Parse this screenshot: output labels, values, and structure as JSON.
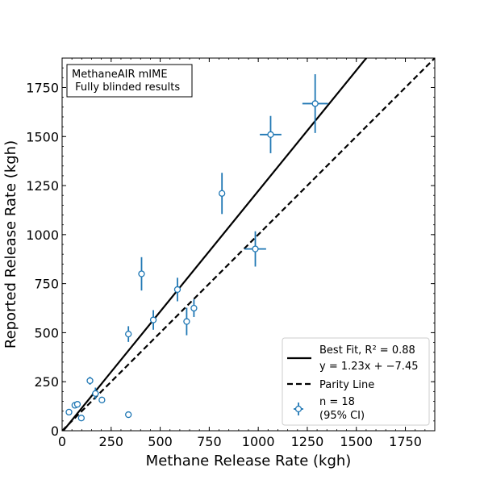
{
  "chart_data": {
    "type": "scatter",
    "xlabel": "Methane Release Rate (kgh)",
    "ylabel": "Reported Release Rate (kgh)",
    "xlim": [
      0,
      1900
    ],
    "ylim": [
      0,
      1900
    ],
    "x_ticks": [
      0,
      250,
      500,
      750,
      1000,
      1250,
      1500,
      1750
    ],
    "y_ticks": [
      0,
      250,
      500,
      750,
      1000,
      1250,
      1500,
      1750
    ],
    "x_tick_labels": [
      "0",
      "250",
      "500",
      "750",
      "1000",
      "1250",
      "1500",
      "1750"
    ],
    "y_tick_labels": [
      "0",
      "250",
      "500",
      "750",
      "1000",
      "1250",
      "1500",
      "1750"
    ],
    "annotation": {
      "lines": [
        "MethaneAIR mIME",
        " Fully blinded results"
      ],
      "placement": "top-left"
    },
    "legend": {
      "placement": "bottom-right",
      "entries": [
        {
          "text_lines": [
            "Best Fit, R² = 0.88",
            "y = 1.23x + −7.45"
          ],
          "style": "solid-line"
        },
        {
          "text_lines": [
            "Parity Line"
          ],
          "style": "dashed-line"
        },
        {
          "text_lines": [
            "n = 18",
            "(95% CI)"
          ],
          "style": "marker-errorbar"
        }
      ]
    },
    "fit_line": {
      "slope": 1.23,
      "intercept": -7.45,
      "r2": 0.88
    },
    "parity_line": {
      "slope": 1,
      "intercept": 0
    },
    "series": [
      {
        "points": [
          {
            "x": 35,
            "y": 95,
            "xerr": 0,
            "yerr": 0
          },
          {
            "x": 65,
            "y": 130,
            "xerr": 0,
            "yerr": 0
          },
          {
            "x": 78,
            "y": 135,
            "xerr": 0,
            "yerr": 0
          },
          {
            "x": 98,
            "y": 65,
            "xerr": 0,
            "yerr": 0
          },
          {
            "x": 142,
            "y": 255,
            "xerr": 0,
            "yerr": 20
          },
          {
            "x": 170,
            "y": 190,
            "xerr": 18,
            "yerr": 30
          },
          {
            "x": 203,
            "y": 157,
            "xerr": 0,
            "yerr": 0
          },
          {
            "x": 338,
            "y": 82,
            "xerr": 0,
            "yerr": 0
          },
          {
            "x": 338,
            "y": 493,
            "xerr": 0,
            "yerr": 40
          },
          {
            "x": 405,
            "y": 800,
            "xerr": 0,
            "yerr": 85
          },
          {
            "x": 465,
            "y": 565,
            "xerr": 0,
            "yerr": 50
          },
          {
            "x": 588,
            "y": 720,
            "xerr": 0,
            "yerr": 60
          },
          {
            "x": 635,
            "y": 557,
            "xerr": 0,
            "yerr": 70
          },
          {
            "x": 672,
            "y": 625,
            "xerr": 0,
            "yerr": 45
          },
          {
            "x": 815,
            "y": 1210,
            "xerr": 0,
            "yerr": 105
          },
          {
            "x": 985,
            "y": 927,
            "xerr": 55,
            "yerr": 90
          },
          {
            "x": 1063,
            "y": 1510,
            "xerr": 55,
            "yerr": 95
          },
          {
            "x": 1290,
            "y": 1668,
            "xerr": 65,
            "yerr": 150
          }
        ]
      }
    ],
    "colors": {
      "points": "#1f77b4",
      "lines": "#000000",
      "marker_fill": "#ffffff"
    }
  }
}
